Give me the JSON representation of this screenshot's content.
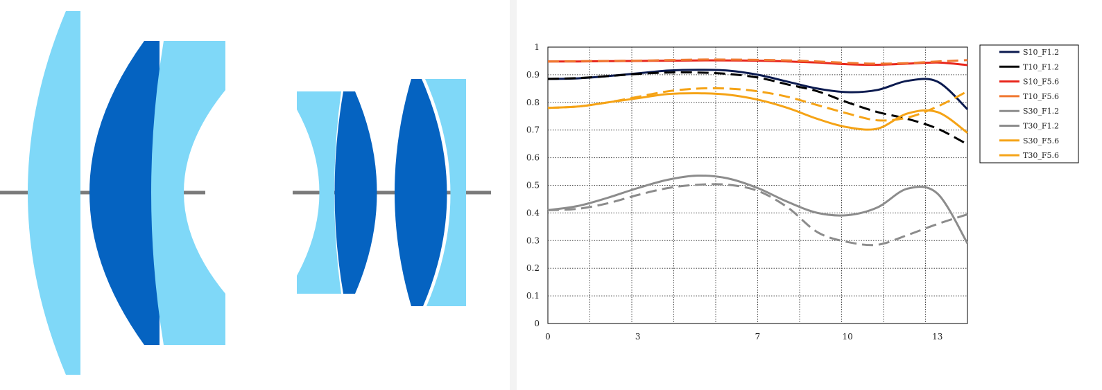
{
  "lens_diagram": {
    "colors": {
      "light_element": "#7fd8f8",
      "dark_element": "#0563c1",
      "optical_axis": "#7a7a7a"
    }
  },
  "chart_data": {
    "type": "line",
    "title": "",
    "xlabel": "",
    "ylabel": "",
    "xlim": [
      0,
      14
    ],
    "ylim": [
      0,
      1
    ],
    "x_ticks": [
      0,
      3,
      7,
      10,
      13
    ],
    "y_ticks": [
      0,
      0.1,
      0.2,
      0.3,
      0.4,
      0.5,
      0.6,
      0.7,
      0.8,
      0.9,
      1
    ],
    "grid": true,
    "grid_style": "dotted",
    "legend_position": "right",
    "series": [
      {
        "name": "S10_F1.2",
        "color": "#0b1a4f",
        "dash": "solid",
        "x": [
          0,
          1,
          2,
          3,
          4,
          5,
          6,
          7,
          8,
          9,
          10,
          11,
          12,
          13,
          14
        ],
        "y": [
          0.885,
          0.887,
          0.895,
          0.905,
          0.915,
          0.918,
          0.915,
          0.9,
          0.875,
          0.85,
          0.837,
          0.845,
          0.878,
          0.875,
          0.775
        ]
      },
      {
        "name": "T10_F1.2",
        "color": "#000000",
        "dash": "dashed",
        "x": [
          0,
          1,
          2,
          3,
          4,
          5,
          6,
          7,
          8,
          9,
          10,
          11,
          12,
          13,
          14
        ],
        "y": [
          0.885,
          0.888,
          0.895,
          0.903,
          0.908,
          0.908,
          0.903,
          0.89,
          0.865,
          0.84,
          0.8,
          0.765,
          0.74,
          0.705,
          0.648
        ]
      },
      {
        "name": "S10_F5.6",
        "color": "#e8261c",
        "dash": "solid",
        "x": [
          0,
          1,
          2,
          3,
          4,
          5,
          6,
          7,
          8,
          9,
          10,
          11,
          12,
          13,
          14
        ],
        "y": [
          0.948,
          0.948,
          0.949,
          0.95,
          0.951,
          0.952,
          0.952,
          0.951,
          0.948,
          0.944,
          0.938,
          0.936,
          0.94,
          0.944,
          0.935
        ]
      },
      {
        "name": "T10_F5.6",
        "color": "#f07830",
        "dash": "dashed",
        "x": [
          0,
          1,
          2,
          3,
          4,
          5,
          6,
          7,
          8,
          9,
          10,
          11,
          12,
          13,
          14
        ],
        "y": [
          0.948,
          0.949,
          0.95,
          0.951,
          0.953,
          0.955,
          0.955,
          0.954,
          0.952,
          0.948,
          0.943,
          0.94,
          0.942,
          0.948,
          0.953
        ]
      },
      {
        "name": "S30_F1.2",
        "color": "#8c8c8c",
        "dash": "solid",
        "x": [
          0,
          1,
          2,
          3,
          4,
          5,
          6,
          7,
          8,
          9,
          10,
          11,
          12,
          13,
          14
        ],
        "y": [
          0.41,
          0.425,
          0.455,
          0.49,
          0.52,
          0.535,
          0.525,
          0.49,
          0.44,
          0.4,
          0.392,
          0.42,
          0.488,
          0.47,
          0.29
        ]
      },
      {
        "name": "T30_F1.2",
        "color": "#8c8c8c",
        "dash": "dashed",
        "x": [
          0,
          1,
          2,
          3,
          4,
          5,
          6,
          7,
          8,
          9,
          10,
          11,
          12,
          13,
          14
        ],
        "y": [
          0.41,
          0.415,
          0.435,
          0.465,
          0.49,
          0.502,
          0.502,
          0.48,
          0.42,
          0.33,
          0.295,
          0.285,
          0.32,
          0.36,
          0.395
        ]
      },
      {
        "name": "S30_F5.6",
        "color": "#f5a316",
        "dash": "solid",
        "x": [
          0,
          1,
          2,
          3,
          4,
          5,
          6,
          7,
          8,
          9,
          10,
          11,
          12,
          13,
          14
        ],
        "y": [
          0.78,
          0.785,
          0.8,
          0.815,
          0.83,
          0.833,
          0.828,
          0.81,
          0.78,
          0.74,
          0.71,
          0.705,
          0.76,
          0.765,
          0.69
        ]
      },
      {
        "name": "T30_F5.6",
        "color": "#f5a316",
        "dash": "dashed",
        "x": [
          0,
          1,
          2,
          3,
          4,
          5,
          6,
          7,
          8,
          9,
          10,
          11,
          12,
          13,
          14
        ],
        "y": [
          0.78,
          0.785,
          0.8,
          0.82,
          0.84,
          0.85,
          0.85,
          0.84,
          0.82,
          0.79,
          0.76,
          0.735,
          0.745,
          0.785,
          0.84
        ]
      }
    ]
  }
}
